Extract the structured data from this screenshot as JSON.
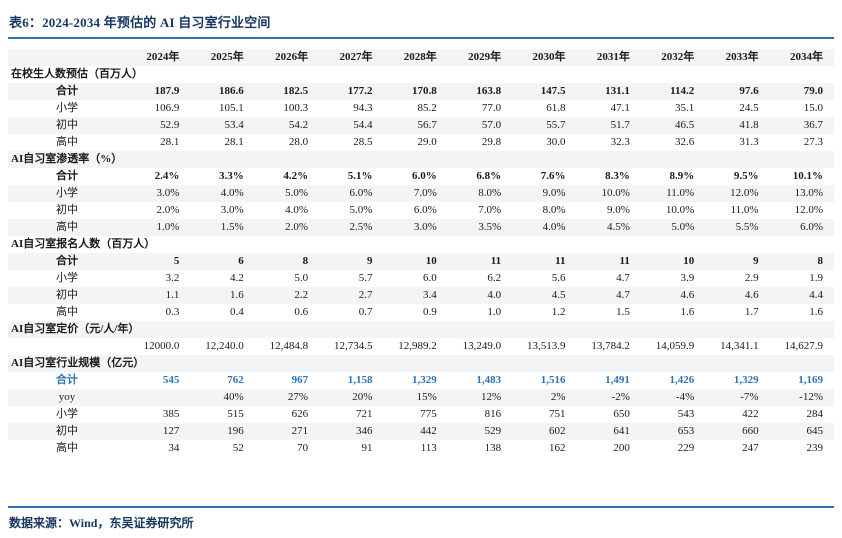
{
  "title": "表6：2024-2034 年预估的 AI 自习室行业空间",
  "source_note": "数据来源：Wind，东吴证券研究所",
  "colors": {
    "title_navy": "#17375E",
    "rule_blue": "#2E74B5",
    "highlight_blue": "#2E74B5",
    "row_shade": "#F3F4F6"
  },
  "chart_data": {
    "type": "table",
    "years": [
      "2024年",
      "2025年",
      "2026年",
      "2027年",
      "2028年",
      "2029年",
      "2030年",
      "2031年",
      "2032年",
      "2033年",
      "2034年"
    ],
    "sections": [
      {
        "header": "在校生人数预估（百万人）",
        "rows": [
          {
            "label": "合计",
            "bold": true,
            "values": [
              "187.9",
              "186.6",
              "182.5",
              "177.2",
              "170.8",
              "163.8",
              "147.5",
              "131.1",
              "114.2",
              "97.6",
              "79.0"
            ]
          },
          {
            "label": "小学",
            "values": [
              "106.9",
              "105.1",
              "100.3",
              "94.3",
              "85.2",
              "77.0",
              "61.8",
              "47.1",
              "35.1",
              "24.5",
              "15.0"
            ]
          },
          {
            "label": "初中",
            "values": [
              "52.9",
              "53.4",
              "54.2",
              "54.4",
              "56.7",
              "57.0",
              "55.7",
              "51.7",
              "46.5",
              "41.8",
              "36.7"
            ]
          },
          {
            "label": "高中",
            "values": [
              "28.1",
              "28.1",
              "28.0",
              "28.5",
              "29.0",
              "29.8",
              "30.0",
              "32.3",
              "32.6",
              "31.3",
              "27.3"
            ]
          }
        ]
      },
      {
        "header": "AI自习室渗透率（%）",
        "rows": [
          {
            "label": "合计",
            "bold": true,
            "values": [
              "2.4%",
              "3.3%",
              "4.2%",
              "5.1%",
              "6.0%",
              "6.8%",
              "7.6%",
              "8.3%",
              "8.9%",
              "9.5%",
              "10.1%"
            ]
          },
          {
            "label": "小学",
            "values": [
              "3.0%",
              "4.0%",
              "5.0%",
              "6.0%",
              "7.0%",
              "8.0%",
              "9.0%",
              "10.0%",
              "11.0%",
              "12.0%",
              "13.0%"
            ]
          },
          {
            "label": "初中",
            "values": [
              "2.0%",
              "3.0%",
              "4.0%",
              "5.0%",
              "6.0%",
              "7.0%",
              "8.0%",
              "9.0%",
              "10.0%",
              "11.0%",
              "12.0%"
            ]
          },
          {
            "label": "高中",
            "values": [
              "1.0%",
              "1.5%",
              "2.0%",
              "2.5%",
              "3.0%",
              "3.5%",
              "4.0%",
              "4.5%",
              "5.0%",
              "5.5%",
              "6.0%"
            ]
          }
        ]
      },
      {
        "header": "AI自习室报名人数（百万人）",
        "rows": [
          {
            "label": "合计",
            "bold": true,
            "values": [
              "5",
              "6",
              "8",
              "9",
              "10",
              "11",
              "11",
              "11",
              "10",
              "9",
              "8"
            ]
          },
          {
            "label": "小学",
            "values": [
              "3.2",
              "4.2",
              "5.0",
              "5.7",
              "6.0",
              "6.2",
              "5.6",
              "4.7",
              "3.9",
              "2.9",
              "1.9"
            ]
          },
          {
            "label": "初中",
            "values": [
              "1.1",
              "1.6",
              "2.2",
              "2.7",
              "3.4",
              "4.0",
              "4.5",
              "4.7",
              "4.6",
              "4.6",
              "4.4"
            ]
          },
          {
            "label": "高中",
            "values": [
              "0.3",
              "0.4",
              "0.6",
              "0.7",
              "0.9",
              "1.0",
              "1.2",
              "1.5",
              "1.6",
              "1.7",
              "1.6"
            ]
          }
        ]
      },
      {
        "header": "AI自习室定价（元/人/年）",
        "rows": [
          {
            "label": "",
            "values": [
              "12000.0",
              "12,240.0",
              "12,484.8",
              "12,734.5",
              "12,989.2",
              "13,249.0",
              "13,513.9",
              "13,784.2",
              "14,059.9",
              "14,341.1",
              "14,627.9"
            ]
          }
        ]
      },
      {
        "header": "AI自习室行业规模（亿元）",
        "rows": [
          {
            "label": "合计",
            "bold": true,
            "highlight": true,
            "values": [
              "545",
              "762",
              "967",
              "1,158",
              "1,329",
              "1,483",
              "1,516",
              "1,491",
              "1,426",
              "1,329",
              "1,169"
            ]
          },
          {
            "label": "yoy",
            "values": [
              "",
              "40%",
              "27%",
              "20%",
              "15%",
              "12%",
              "2%",
              "-2%",
              "-4%",
              "-7%",
              "-12%"
            ]
          },
          {
            "label": "小学",
            "values": [
              "385",
              "515",
              "626",
              "721",
              "775",
              "816",
              "751",
              "650",
              "543",
              "422",
              "284"
            ]
          },
          {
            "label": "初中",
            "values": [
              "127",
              "196",
              "271",
              "346",
              "442",
              "529",
              "602",
              "641",
              "653",
              "660",
              "645"
            ]
          },
          {
            "label": "高中",
            "values": [
              "34",
              "52",
              "70",
              "91",
              "113",
              "138",
              "162",
              "200",
              "229",
              "247",
              "239"
            ]
          }
        ]
      }
    ]
  }
}
